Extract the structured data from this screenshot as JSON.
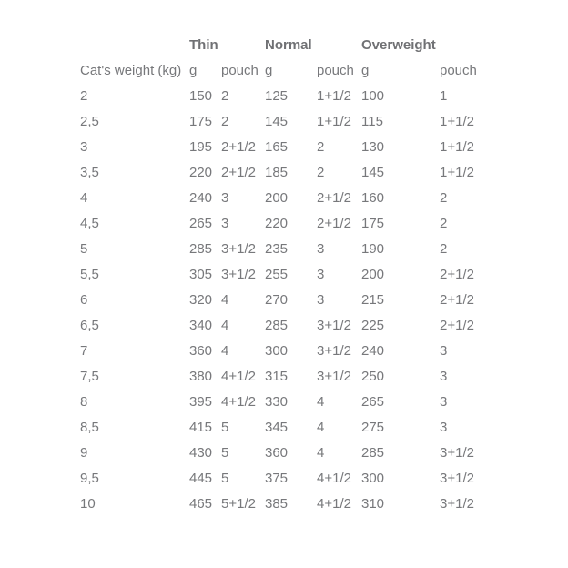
{
  "chart_data": {
    "type": "table",
    "column_groups": [
      "Thin",
      "Normal",
      "Overweight"
    ],
    "header": {
      "row_label": "Cat's weight (kg)",
      "unit_grams": "g",
      "unit_pouch": "pouch"
    },
    "rows": [
      {
        "weight": "2",
        "thin_g": "150",
        "thin_pouch": "2",
        "normal_g": "125",
        "normal_pouch": "1+1/2",
        "overweight_g": "100",
        "overweight_pouch": "1"
      },
      {
        "weight": "2,5",
        "thin_g": "175",
        "thin_pouch": "2",
        "normal_g": "145",
        "normal_pouch": "1+1/2",
        "overweight_g": "115",
        "overweight_pouch": "1+1/2"
      },
      {
        "weight": "3",
        "thin_g": "195",
        "thin_pouch": "2+1/2",
        "normal_g": "165",
        "normal_pouch": "2",
        "overweight_g": "130",
        "overweight_pouch": "1+1/2"
      },
      {
        "weight": "3,5",
        "thin_g": "220",
        "thin_pouch": "2+1/2",
        "normal_g": "185",
        "normal_pouch": "2",
        "overweight_g": "145",
        "overweight_pouch": "1+1/2"
      },
      {
        "weight": "4",
        "thin_g": "240",
        "thin_pouch": "3",
        "normal_g": "200",
        "normal_pouch": "2+1/2",
        "overweight_g": "160",
        "overweight_pouch": "2"
      },
      {
        "weight": "4,5",
        "thin_g": "265",
        "thin_pouch": "3",
        "normal_g": "220",
        "normal_pouch": "2+1/2",
        "overweight_g": "175",
        "overweight_pouch": "2"
      },
      {
        "weight": "5",
        "thin_g": "285",
        "thin_pouch": "3+1/2",
        "normal_g": "235",
        "normal_pouch": "3",
        "overweight_g": "190",
        "overweight_pouch": "2"
      },
      {
        "weight": "5,5",
        "thin_g": "305",
        "thin_pouch": "3+1/2",
        "normal_g": "255",
        "normal_pouch": "3",
        "overweight_g": "200",
        "overweight_pouch": "2+1/2"
      },
      {
        "weight": "6",
        "thin_g": "320",
        "thin_pouch": "4",
        "normal_g": "270",
        "normal_pouch": "3",
        "overweight_g": "215",
        "overweight_pouch": "2+1/2"
      },
      {
        "weight": "6,5",
        "thin_g": "340",
        "thin_pouch": "4",
        "normal_g": "285",
        "normal_pouch": "3+1/2",
        "overweight_g": "225",
        "overweight_pouch": "2+1/2"
      },
      {
        "weight": "7",
        "thin_g": "360",
        "thin_pouch": "4",
        "normal_g": "300",
        "normal_pouch": "3+1/2",
        "overweight_g": "240",
        "overweight_pouch": "3"
      },
      {
        "weight": "7,5",
        "thin_g": "380",
        "thin_pouch": "4+1/2",
        "normal_g": "315",
        "normal_pouch": "3+1/2",
        "overweight_g": "250",
        "overweight_pouch": "3"
      },
      {
        "weight": "8",
        "thin_g": "395",
        "thin_pouch": "4+1/2",
        "normal_g": "330",
        "normal_pouch": "4",
        "overweight_g": "265",
        "overweight_pouch": "3"
      },
      {
        "weight": "8,5",
        "thin_g": "415",
        "thin_pouch": "5",
        "normal_g": "345",
        "normal_pouch": "4",
        "overweight_g": "275",
        "overweight_pouch": "3"
      },
      {
        "weight": "9",
        "thin_g": "430",
        "thin_pouch": "5",
        "normal_g": "360",
        "normal_pouch": "4",
        "overweight_g": "285",
        "overweight_pouch": "3+1/2"
      },
      {
        "weight": "9,5",
        "thin_g": "445",
        "thin_pouch": "5",
        "normal_g": "375",
        "normal_pouch": "4+1/2",
        "overweight_g": "300",
        "overweight_pouch": "3+1/2"
      },
      {
        "weight": "10",
        "thin_g": "465",
        "thin_pouch": "5+1/2",
        "normal_g": "385",
        "normal_pouch": "4+1/2",
        "overweight_g": "310",
        "overweight_pouch": "3+1/2"
      }
    ]
  },
  "colors": {
    "text": "#77787b",
    "header_text": "#707174",
    "background": "#ffffff"
  }
}
